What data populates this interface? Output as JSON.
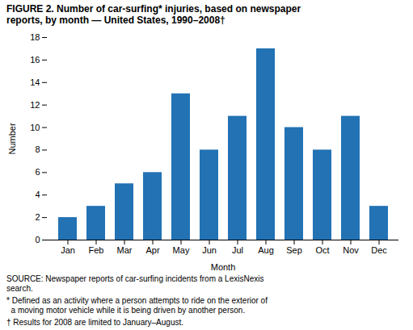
{
  "chart_data": {
    "type": "bar",
    "title": "FIGURE 2. Number of car-surfing* injuries, based on newspaper\nreports, by month — United States, 1990–2008†",
    "categories": [
      "Jan",
      "Feb",
      "Mar",
      "Apr",
      "May",
      "Jun",
      "Jul",
      "Aug",
      "Sep",
      "Oct",
      "Nov",
      "Dec"
    ],
    "values": [
      2,
      3,
      5,
      6,
      13,
      8,
      11,
      17,
      10,
      8,
      11,
      3
    ],
    "color": "#2272b4",
    "x_label": "Month",
    "y_label": "Number",
    "ylim": [
      0,
      18
    ],
    "yticks": [
      0,
      2,
      4,
      6,
      8,
      10,
      12,
      14,
      16,
      18
    ],
    "grid": false,
    "annotations": [
      "SOURCE: Newspaper reports of car-surfing incidents from a LexisNexis\nsearch.",
      "* Defined as an activity where a person attempts to ride on the exterior of\n  a moving motor vehicle while it is being driven by another person.",
      "† Results for 2008 are limited to January–August."
    ]
  }
}
